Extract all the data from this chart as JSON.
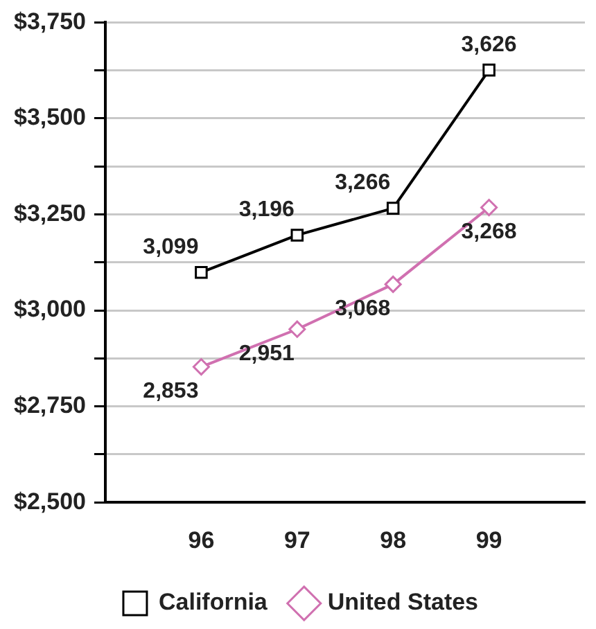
{
  "chart_data": {
    "type": "line",
    "categories": [
      "96",
      "97",
      "98",
      "99"
    ],
    "series": [
      {
        "name": "California",
        "color": "#000000",
        "marker": "square",
        "values": [
          3099,
          3196,
          3266,
          3626
        ],
        "value_labels": [
          "3,099",
          "3,196",
          "3,266",
          "3,626"
        ]
      },
      {
        "name": "United States",
        "color": "#d070b0",
        "marker": "diamond",
        "values": [
          2853,
          2951,
          3068,
          3268
        ],
        "value_labels": [
          "2,853",
          "2,951",
          "3,068",
          "3,268"
        ]
      }
    ],
    "ylim": [
      2500,
      3750
    ],
    "yticks": [
      {
        "value": 2500,
        "label": "$2,500"
      },
      {
        "value": 2625,
        "label": null
      },
      {
        "value": 2750,
        "label": "$2,750"
      },
      {
        "value": 2875,
        "label": null
      },
      {
        "value": 3000,
        "label": "$3,000"
      },
      {
        "value": 3125,
        "label": null
      },
      {
        "value": 3250,
        "label": "$3,250"
      },
      {
        "value": 3375,
        "label": null
      },
      {
        "value": 3500,
        "label": "$3,500"
      },
      {
        "value": 3625,
        "label": null
      },
      {
        "value": 3750,
        "label": "$3,750"
      }
    ],
    "grid": "y",
    "legend": "bottom",
    "line_style": "solid"
  }
}
